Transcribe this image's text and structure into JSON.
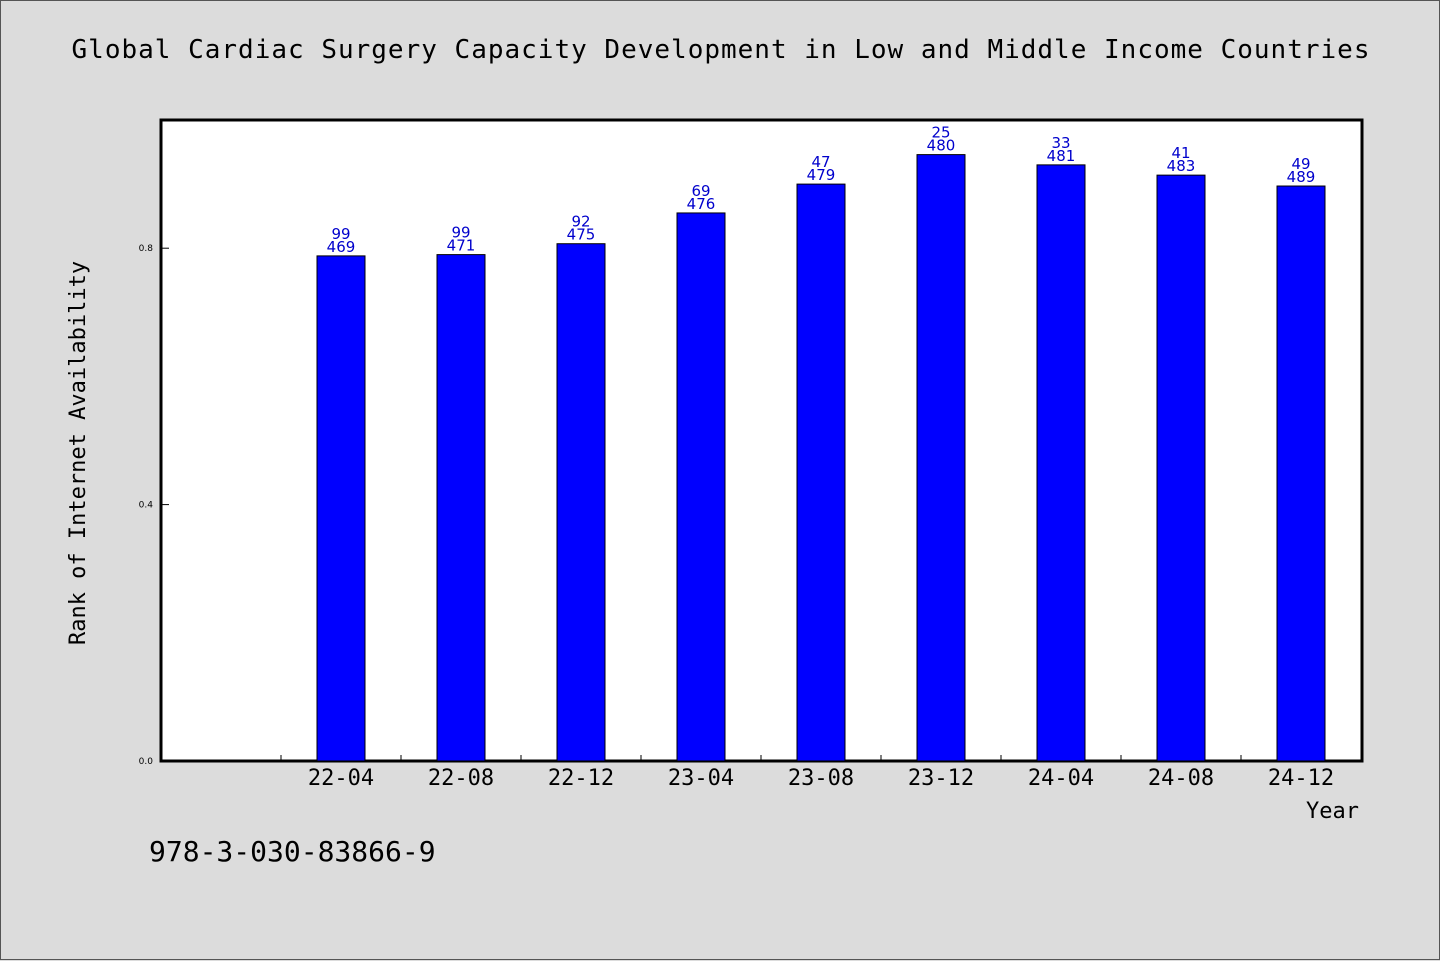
{
  "chart_data": {
    "type": "bar",
    "title": "Global Cardiac Surgery Capacity Development in Low and Middle Income Countries",
    "xlabel": "Year",
    "ylabel": "Rank of Internet Availability",
    "categories": [
      "22-04",
      "22-08",
      "22-12",
      "23-04",
      "23-08",
      "23-12",
      "24-04",
      "24-08",
      "24-12"
    ],
    "values": [
      0.788,
      0.79,
      0.807,
      0.855,
      0.9,
      0.946,
      0.93,
      0.914,
      0.897
    ],
    "data_labels": [
      [
        "99",
        "469"
      ],
      [
        "99",
        "471"
      ],
      [
        "92",
        "475"
      ],
      [
        "69",
        "476"
      ],
      [
        "47",
        "479"
      ],
      [
        "25",
        "480"
      ],
      [
        "33",
        "481"
      ],
      [
        "41",
        "483"
      ],
      [
        "49",
        "489"
      ]
    ],
    "yticks": [
      "0.0",
      "0.4",
      "0.8"
    ],
    "ytick_values": [
      0.0,
      0.4,
      0.8
    ],
    "ylim": [
      0,
      1.0
    ],
    "grid": false,
    "legend": "none",
    "colors": {
      "bar": "#0000ff",
      "data_label": "#0000cc",
      "background": "#dcdcdc",
      "plot": "#ffffff"
    }
  },
  "footer": {
    "isbn": "978-3-030-83866-9"
  }
}
